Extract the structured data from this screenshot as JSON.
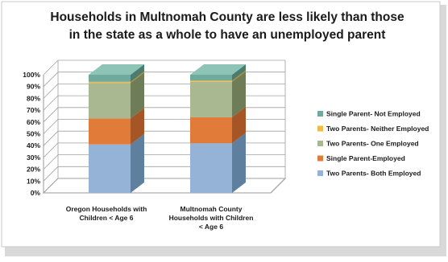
{
  "chart_data": {
    "type": "bar",
    "stacked": true,
    "three_d": true,
    "title": "Households in Multnomah County are less likely than those in the state as a whole to have an unemployed parent",
    "title_lines": [
      "Households in Multnomah County are less likely than those",
      "in the state as a whole to have an unemployed parent"
    ],
    "categories": [
      "Oregon Households with Children < Age 6",
      "Multnomah County Households with Children < Age 6"
    ],
    "category_lines": [
      [
        "Oregon Households with",
        "Children < Age 6"
      ],
      [
        "Multnomah County",
        "Households with Children",
        "< Age 6"
      ]
    ],
    "ylim": [
      0,
      100
    ],
    "yticks": [
      "0%",
      "10%",
      "20%",
      "30%",
      "40%",
      "50%",
      "60%",
      "70%",
      "80%",
      "90%",
      "100%"
    ],
    "grid": true,
    "legend_position": "right",
    "series": [
      {
        "name": "Two Parents- Both Employed",
        "values": [
          41,
          42
        ],
        "color": "#95b3d7",
        "side": "#5f7f9f",
        "top": "#b8cce4"
      },
      {
        "name": "Single Parent-Employed",
        "values": [
          22,
          22
        ],
        "color": "#e07b39",
        "side": "#a65626",
        "top": "#f0a06a"
      },
      {
        "name": "Two Parents- One Employed",
        "values": [
          30,
          30
        ],
        "color": "#a9b890",
        "side": "#6e7d58",
        "top": "#c4d0ad"
      },
      {
        "name": "Two Parents- Neither Employed",
        "values": [
          1,
          1
        ],
        "color": "#f4b844",
        "side": "#b8862a",
        "top": "#f8d27c"
      },
      {
        "name": "Single Parent- Not Employed",
        "values": [
          6,
          5
        ],
        "color": "#6faa9c",
        "side": "#4a7d70",
        "top": "#8ec4b6"
      }
    ],
    "legend_display": [
      "Single Parent- Not Employed",
      "Two Parents- Neither Employed",
      "Two Parents- One Employed",
      "Single Parent-Employed",
      "Two Parents- Both Employed"
    ]
  }
}
